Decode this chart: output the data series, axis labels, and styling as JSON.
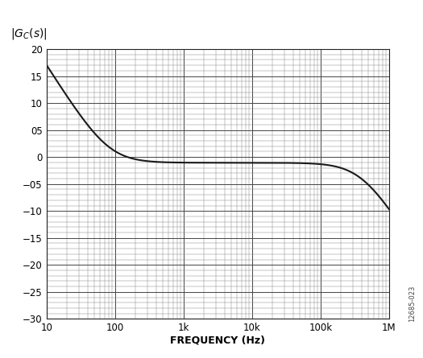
{
  "xlabel": "FREQUENCY (Hz)",
  "ylabel_vals": [
    20,
    15,
    10,
    5,
    0,
    -5,
    -10,
    -15,
    -20,
    -25,
    -30
  ],
  "ylabel_labels": [
    "20",
    "15",
    "10",
    "05",
    "0",
    "−05",
    "−10",
    "−15",
    "−20",
    "−25",
    "−30"
  ],
  "ylim": [
    -30,
    20
  ],
  "xmin": 10,
  "xmax": 1000000,
  "xtick_labels": [
    "10",
    "100",
    "1k",
    "10k",
    "100k",
    "1M"
  ],
  "xtick_vals": [
    10,
    100,
    1000,
    10000,
    100000,
    1000000
  ],
  "background_color": "#ffffff",
  "line_color": "#1a1a1a",
  "grid_major_color": "#444444",
  "grid_minor_color": "#888888",
  "annotation": "12685-023",
  "fz": 80,
  "fp": 400000,
  "K_gain": 0.885
}
